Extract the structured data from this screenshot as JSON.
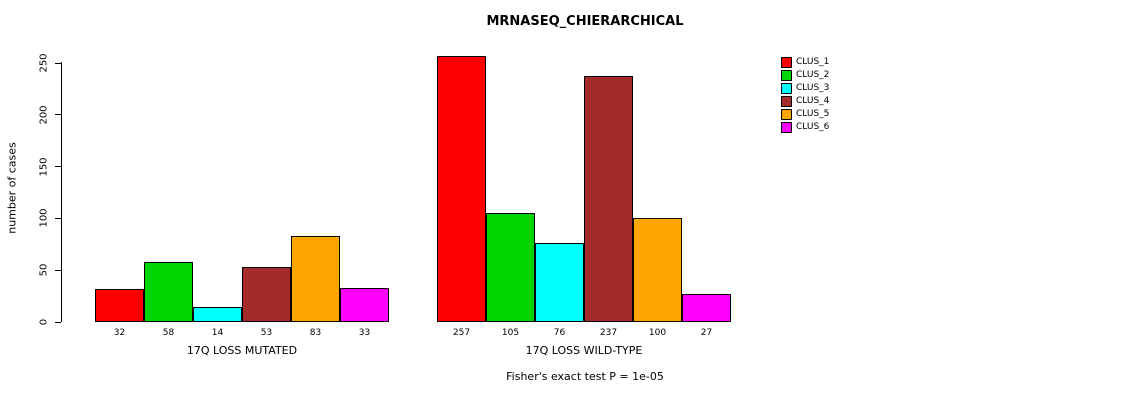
{
  "chart_data": {
    "type": "bar",
    "title": "MRNASEQ_CHIERARCHICAL",
    "ylabel": "number of cases",
    "annotation": "Fisher's exact test P = 1e-05",
    "series_names": [
      "CLUS_1",
      "CLUS_2",
      "CLUS_3",
      "CLUS_4",
      "CLUS_5",
      "CLUS_6"
    ],
    "colors": [
      "#ff0000",
      "#00d500",
      "#00ffff",
      "#a52a2a",
      "#ffa500",
      "#ff00ff"
    ],
    "groups": [
      {
        "label": "17Q LOSS MUTATED",
        "values": [
          32,
          58,
          14,
          53,
          83,
          33
        ]
      },
      {
        "label": "17Q LOSS WILD-TYPE",
        "values": [
          257,
          105,
          76,
          237,
          100,
          27
        ]
      }
    ],
    "yticks": [
      0,
      50,
      100,
      150,
      200,
      250
    ],
    "ylim": [
      0,
      260
    ],
    "grid": false,
    "legend_position": "top-right"
  }
}
